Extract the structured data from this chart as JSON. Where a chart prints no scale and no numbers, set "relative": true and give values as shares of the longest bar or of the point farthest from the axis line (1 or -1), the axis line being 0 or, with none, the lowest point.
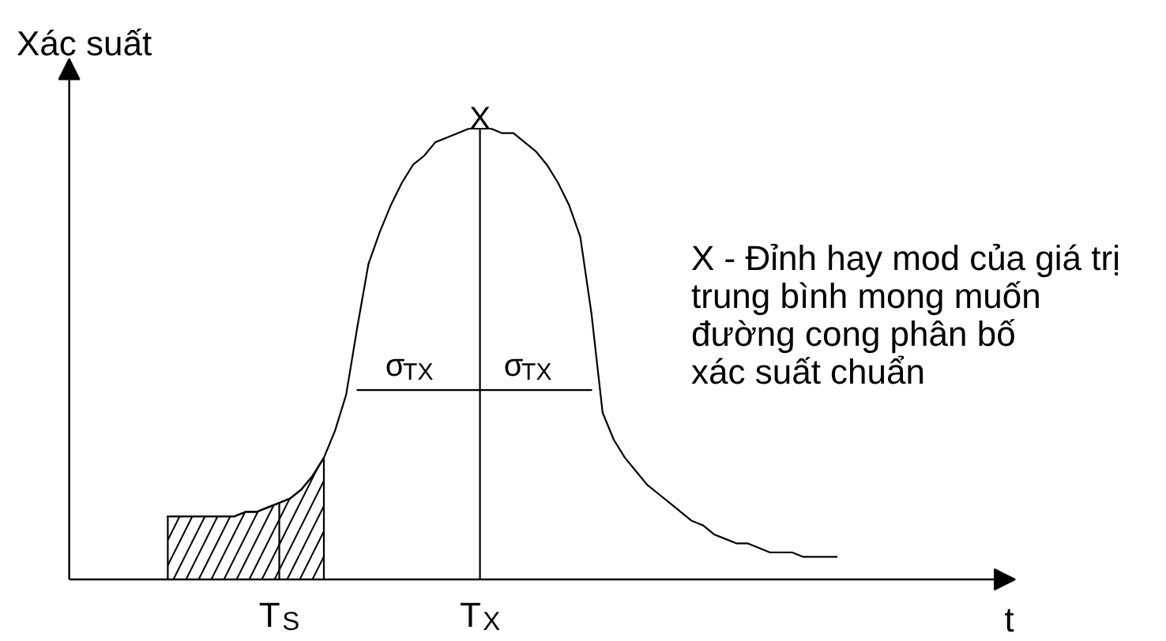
{
  "chart_data": {
    "type": "line",
    "relative": true,
    "xlabel": "t",
    "ylabel": "Xác suất",
    "categories": [
      null,
      null,
      null,
      null,
      null,
      null,
      null,
      null,
      null,
      null,
      "T$_{S}$",
      null,
      null,
      null,
      null,
      null,
      null,
      null,
      null,
      null,
      null,
      null,
      null,
      null,
      null,
      null,
      null,
      null,
      "T$_{X}$",
      null,
      null,
      null,
      null,
      null,
      null,
      null,
      null,
      null,
      null,
      null,
      null,
      null,
      null,
      null,
      null,
      null,
      null,
      null,
      null,
      null,
      null,
      null,
      null,
      null,
      null,
      null,
      null,
      null,
      null,
      null,
      null
    ],
    "series": [
      {
        "color": "#000000",
        "values": [
          0.14,
          0.14,
          0.14,
          0.14,
          0.14,
          0.14,
          0.14,
          0.15,
          0.15,
          0.16,
          0.17,
          0.18,
          0.2,
          0.23,
          0.27,
          0.33,
          0.41,
          0.56,
          0.7,
          0.77,
          0.83,
          0.88,
          0.92,
          0.94,
          0.97,
          0.98,
          0.99,
          1.0,
          1,
          1.0,
          0.99,
          0.99,
          0.97,
          0.95,
          0.92,
          0.88,
          0.83,
          0.76,
          0.59,
          0.37,
          0.31,
          0.27,
          0.24,
          0.21,
          0.19,
          0.17,
          0.15,
          0.13,
          0.12,
          0.1,
          0.09,
          0.08,
          0.08,
          0.07,
          0.06,
          0.06,
          0.06,
          0.05,
          0.05,
          0.05,
          0.05
        ]
      },
      {
        "type": "area",
        "color": "#000000",
        "values": [
          0.14,
          0.14,
          0.14,
          0.14,
          0.14,
          0.14,
          0.14,
          0.15,
          0.15,
          0.16,
          0.17,
          0.18,
          0.2,
          0.23,
          0.27,
          null,
          null,
          null,
          null,
          null,
          null,
          null,
          null,
          null,
          null,
          null,
          null,
          null,
          null,
          null,
          null,
          null,
          null,
          null,
          null,
          null,
          null,
          null,
          null,
          null,
          null,
          null,
          null,
          null,
          null,
          null,
          null,
          null,
          null,
          null,
          null,
          null,
          null,
          null,
          null,
          null,
          null,
          null,
          null,
          null,
          null
        ]
      },
      {
        "color": "#000000",
        "x": [
          "T$_{S}$",
          "T$_{S}$"
        ],
        "values": [
          0,
          0.17
        ]
      },
      {
        "color": "#000000",
        "x": [
          "T$_{X}$",
          "T$_{X}$"
        ],
        "values": [
          0,
          1
        ]
      },
      {
        "color": "#000000",
        "values": [
          null,
          null,
          null,
          null,
          null,
          null,
          null,
          null,
          null,
          null,
          null,
          null,
          null,
          null,
          null,
          null,
          null,
          0.42,
          0.42,
          0.42,
          0.42,
          0.42,
          0.42,
          0.42,
          0.42,
          0.42,
          0.42,
          0.42,
          0.42,
          0.42,
          0.42,
          0.42,
          0.42,
          0.42,
          0.42,
          0.42,
          0.42,
          0.42,
          0.42,
          null,
          null,
          null,
          null,
          null,
          null,
          null,
          null,
          null,
          null,
          null,
          null,
          null,
          null,
          null,
          null,
          null,
          null,
          null,
          null,
          null,
          null
        ]
      }
    ],
    "annotations": [
      {
        "text": "X",
        "x": "T$_{X}$",
        "y": 1
      },
      {
        "text": "σ$_{TX}$",
        "y": 0.42
      },
      {
        "text": "σ$_{TX}$",
        "y": 0.42
      },
      "X - Đỉnh hay mod của giá trị\ntrung bình mong muốn\nđường cong phân bố\nxác suất chuẩn"
    ]
  }
}
